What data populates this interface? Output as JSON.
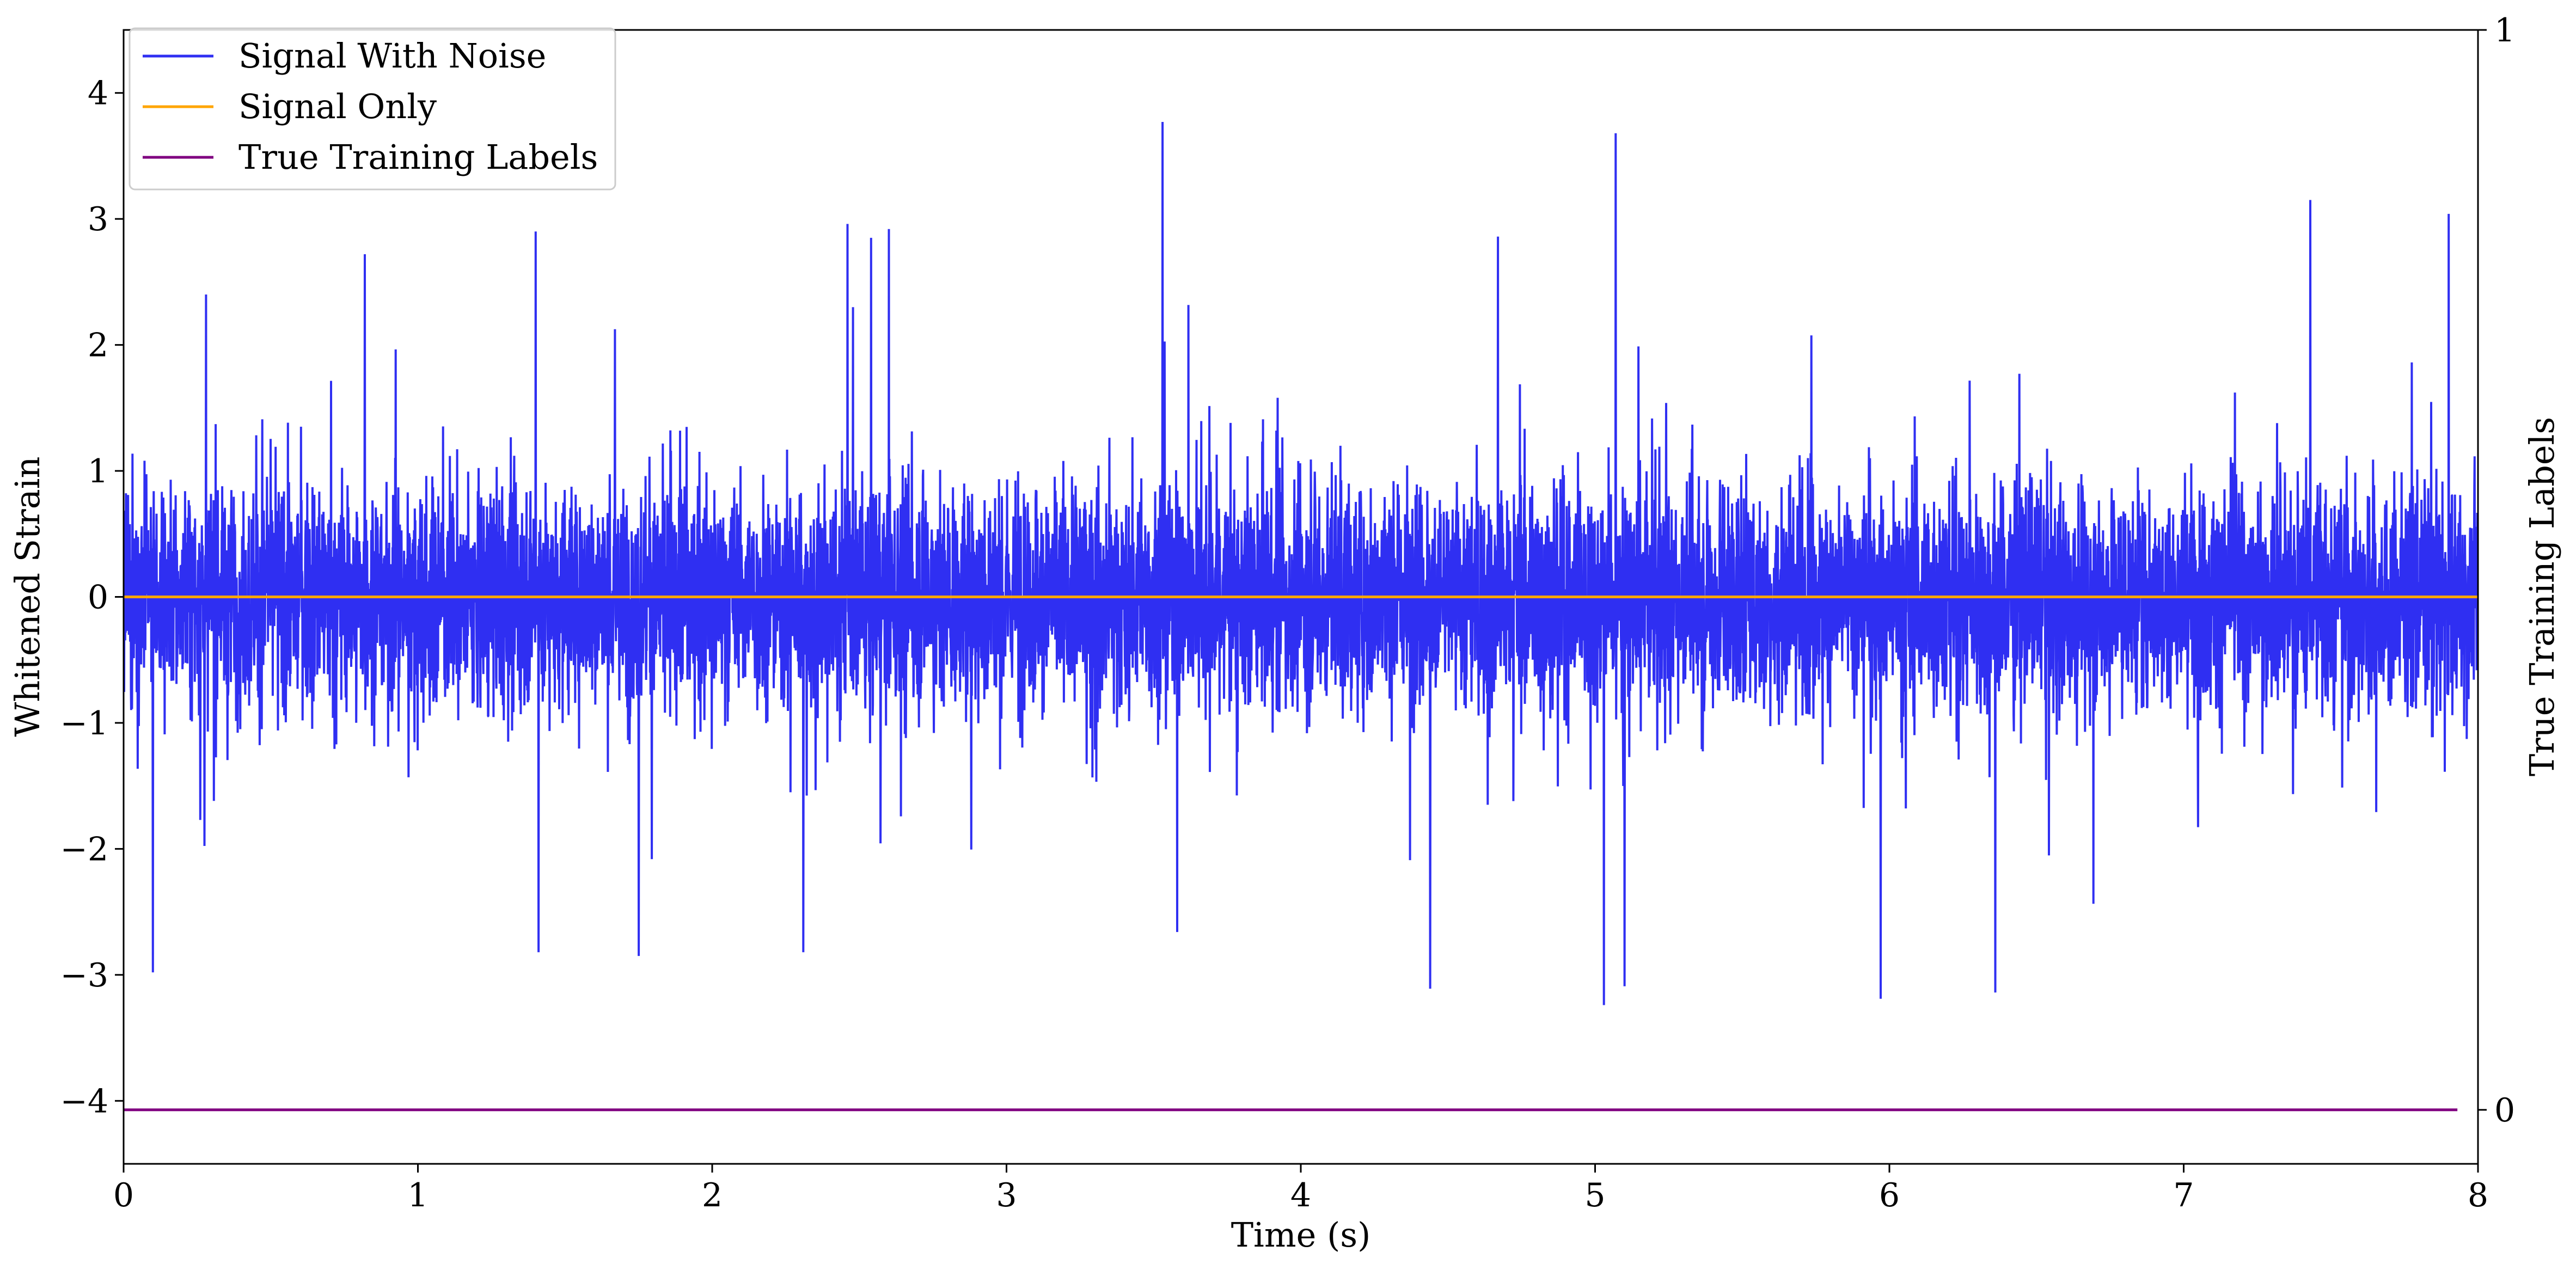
{
  "chart_data": {
    "type": "line",
    "xlabel": "Time (s)",
    "ylabel": "Whitened Strain",
    "y2label": "True Training Labels",
    "xlim": [
      0,
      8
    ],
    "ylim": [
      -4.5,
      4.5
    ],
    "y2lim": [
      -0.05,
      1
    ],
    "x_ticks": [
      0,
      1,
      2,
      3,
      4,
      5,
      6,
      7,
      8
    ],
    "x_tick_labels": [
      "0",
      "1",
      "2",
      "3",
      "4",
      "5",
      "6",
      "7",
      "8"
    ],
    "y_ticks": [
      -4,
      -3,
      -2,
      -1,
      0,
      1,
      2,
      3,
      4
    ],
    "y_tick_labels": [
      "−4",
      "−3",
      "−2",
      "−1",
      "0",
      "1",
      "2",
      "3",
      "4"
    ],
    "y2_ticks": [
      0,
      1
    ],
    "y2_tick_labels": [
      "0",
      "1"
    ],
    "legend_location": "top-left",
    "grid": false,
    "series": [
      {
        "name": "Signal With Noise",
        "color": "#2f2ff2",
        "axis": "left",
        "style": "dense noise",
        "envelope_typical": [
          -1.3,
          1.5
        ],
        "peaks": [
          {
            "x": 0.1,
            "y": -2.98
          },
          {
            "x": 0.28,
            "y": 2.4
          },
          {
            "x": 0.82,
            "y": 2.72
          },
          {
            "x": 1.4,
            "y": 2.9
          },
          {
            "x": 1.41,
            "y": -2.82
          },
          {
            "x": 1.75,
            "y": -2.85
          },
          {
            "x": 2.31,
            "y": -2.82
          },
          {
            "x": 2.46,
            "y": 2.96
          },
          {
            "x": 2.6,
            "y": 2.92
          },
          {
            "x": 3.53,
            "y": 3.77
          },
          {
            "x": 3.58,
            "y": -2.66
          },
          {
            "x": 4.44,
            "y": -3.11
          },
          {
            "x": 4.67,
            "y": 2.86
          },
          {
            "x": 5.03,
            "y": 4.03
          },
          {
            "x": 5.03,
            "y": -3.24
          },
          {
            "x": 5.07,
            "y": 3.68
          },
          {
            "x": 5.1,
            "y": -3.09
          },
          {
            "x": 5.97,
            "y": -3.19
          },
          {
            "x": 6.36,
            "y": -3.14
          },
          {
            "x": 7.43,
            "y": 3.15
          },
          {
            "x": 7.9,
            "y": 3.04
          }
        ]
      },
      {
        "name": "Signal Only",
        "color": "#ffa500",
        "axis": "left",
        "x": [
          0,
          8
        ],
        "y": [
          0,
          0
        ]
      },
      {
        "name": "True Training Labels",
        "color": "#800080",
        "axis": "right",
        "x": [
          0,
          7.93
        ],
        "y": [
          0,
          0
        ]
      }
    ]
  }
}
